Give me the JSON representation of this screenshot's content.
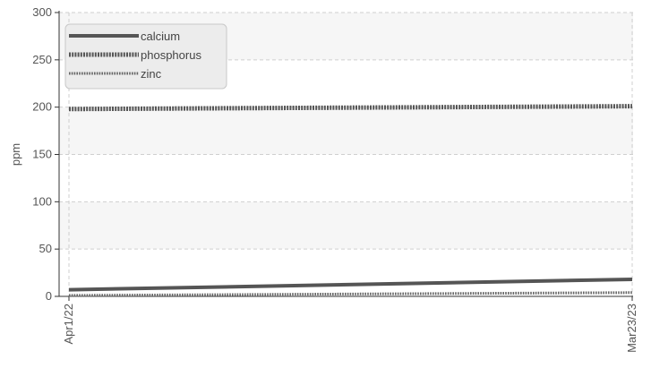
{
  "chart_data": {
    "type": "line",
    "title": "",
    "xlabel": "",
    "ylabel": "ppm",
    "x": [
      "Apr1/22",
      "Mar23/23"
    ],
    "x_tick_labels": [
      "Apr1/22",
      "Mar23/23"
    ],
    "ylim": [
      0,
      300
    ],
    "y_ticks": [
      0,
      50,
      100,
      150,
      200,
      250,
      300
    ],
    "grid": true,
    "legend_position": "top-left",
    "series": [
      {
        "name": "calcium",
        "values": [
          7,
          18
        ],
        "color": "#555555",
        "style": "solid"
      },
      {
        "name": "phosphorus",
        "values": [
          198,
          201
        ],
        "color": "#555555",
        "style": "dense-dotted"
      },
      {
        "name": "zinc",
        "values": [
          1,
          4
        ],
        "color": "#666666",
        "style": "dotted"
      }
    ]
  }
}
